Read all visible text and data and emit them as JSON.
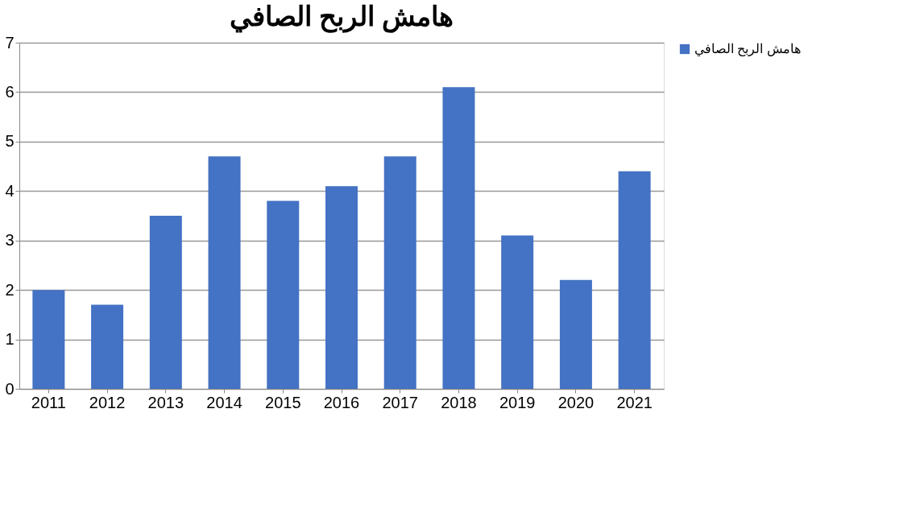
{
  "chart_data": {
    "type": "bar",
    "title": "هامش الربح الصافي",
    "categories": [
      "2011",
      "2012",
      "2013",
      "2014",
      "2015",
      "2016",
      "2017",
      "2018",
      "2019",
      "2020",
      "2021"
    ],
    "series": [
      {
        "name": "هامش الربح الصافي",
        "color": "#4472c4",
        "values": [
          2.0,
          1.7,
          3.5,
          4.7,
          3.8,
          4.1,
          4.7,
          6.1,
          3.1,
          2.2,
          4.4
        ]
      }
    ],
    "ylim": [
      0,
      7
    ],
    "yticks": [
      0,
      1,
      2,
      3,
      4,
      5,
      6,
      7
    ],
    "grid": "y",
    "legend": "right"
  }
}
